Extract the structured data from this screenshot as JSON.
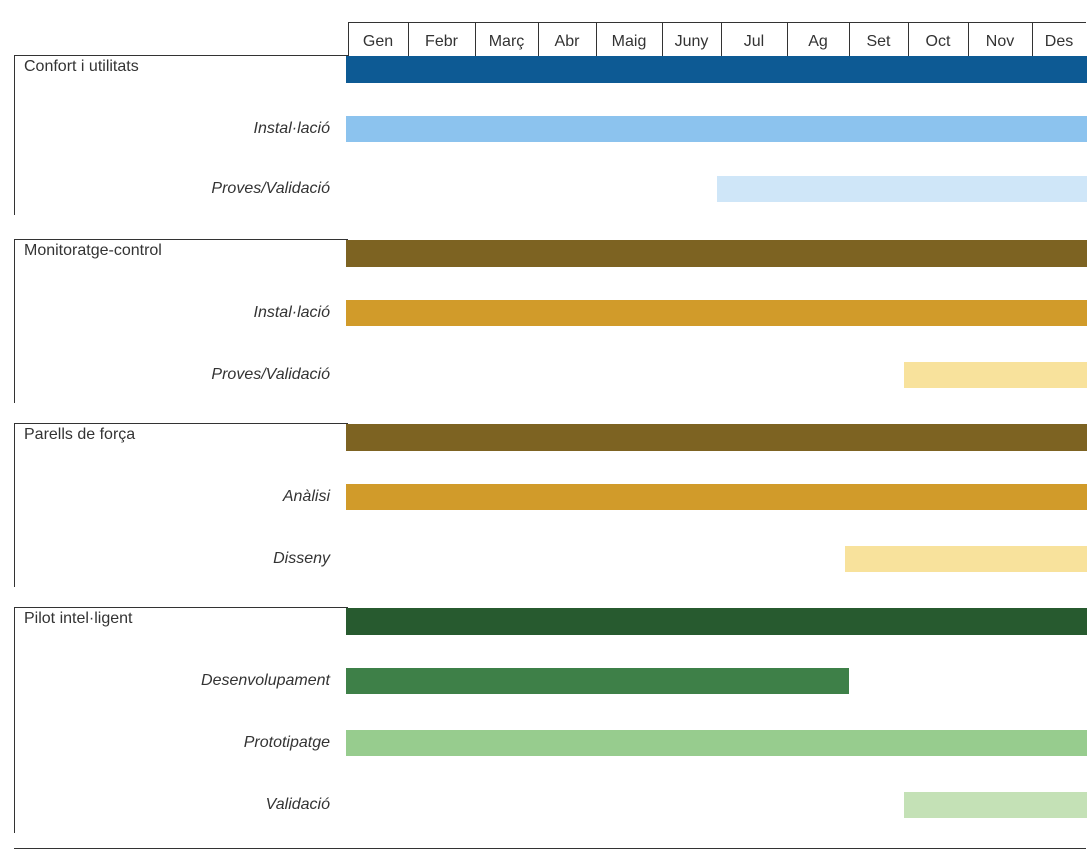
{
  "months": [
    "Gen",
    "Febr",
    "Març",
    "Abr",
    "Maig",
    "Juny",
    "Jul",
    "Ag",
    "Set",
    "Oct",
    "Nov",
    "Des"
  ],
  "sections": [
    {
      "title": "Confort i utilitats",
      "color": "#0d5a94",
      "tasks": [
        {
          "label": "Instal·lació",
          "start": "Gen",
          "end": "Des",
          "color": "#8cc3ee"
        },
        {
          "label": "Proves/Validació",
          "start": "Jul",
          "end": "Des",
          "color": "#cfe6f8"
        }
      ]
    },
    {
      "title": "Monitoratge-control",
      "color": "#7d6322",
      "tasks": [
        {
          "label": "Instal·lació",
          "start": "Gen",
          "end": "Des",
          "color": "#d19b2a"
        },
        {
          "label": "Proves/Validació",
          "start": "Oct",
          "end": "Des",
          "color": "#f8e29c"
        }
      ]
    },
    {
      "title": "Parells de força",
      "color": "#7d6322",
      "tasks": [
        {
          "label": "Anàlisi",
          "start": "Gen",
          "end": "Des",
          "color": "#d19b2a"
        },
        {
          "label": "Disseny",
          "start": "Set",
          "end": "Des",
          "color": "#f8e29c"
        }
      ]
    },
    {
      "title": "Pilot intel·ligent",
      "color": "#275a2f",
      "tasks": [
        {
          "label": "Desenvolupament",
          "start": "Gen",
          "end": "Ag",
          "color": "#3e8048"
        },
        {
          "label": "Prototipatge",
          "start": "Gen",
          "end": "Des",
          "color": "#97cc8e"
        },
        {
          "label": "Validació",
          "start": "Oct",
          "end": "Des",
          "color": "#c4e1b6"
        }
      ]
    }
  ]
}
